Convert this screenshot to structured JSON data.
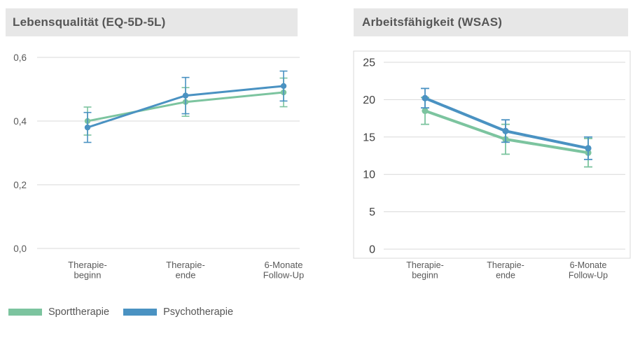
{
  "charts_header": {
    "left_title": "Lebensqualität (EQ-5D-5L)",
    "right_title": "Arbeitsfähigkeit (WSAS)"
  },
  "legend": {
    "position": "bottom-left",
    "items": [
      {
        "label": "Sporttherapie",
        "color": "#7cc49f"
      },
      {
        "label": "Psychotherapie",
        "color": "#4a92c2"
      }
    ]
  },
  "colors": {
    "header_bg": "#e7e7e7",
    "title_text": "#565656",
    "gridline": "#d8d8d8",
    "axis_label_left": "#595959",
    "axis_label_right": "#404040",
    "sporttherapie": "#7cc49f",
    "psychotherapie": "#4a92c2"
  },
  "chart_data": [
    {
      "type": "line",
      "title": "Lebensqualität (EQ-5D-5L)",
      "categories": [
        "Therapie-\nbeginn",
        "Therapie-\nende",
        "6-Monate\nFollow-Up"
      ],
      "y_ticks": [
        {
          "value": 0.0,
          "label": "0,0"
        },
        {
          "value": 0.2,
          "label": "0,2"
        },
        {
          "value": 0.4,
          "label": "0,4"
        },
        {
          "value": 0.6,
          "label": "0,6"
        }
      ],
      "ylim": [
        0.0,
        0.6
      ],
      "grid": true,
      "error_bars": true,
      "series": [
        {
          "name": "Sporttherapie",
          "color": "#7cc49f",
          "values": [
            0.4,
            0.46,
            0.49
          ],
          "errors": [
            0.044,
            0.045,
            0.045
          ]
        },
        {
          "name": "Psychotherapie",
          "color": "#4a92c2",
          "values": [
            0.38,
            0.48,
            0.51
          ],
          "errors": [
            0.047,
            0.057,
            0.047
          ]
        }
      ]
    },
    {
      "type": "line",
      "title": "Arbeitsfähigkeit (WSAS)",
      "categories": [
        "Therapie-\nbeginn",
        "Therapie-\nende",
        "6-Monate\nFollow-Up"
      ],
      "y_ticks": [
        {
          "value": 0,
          "label": "0"
        },
        {
          "value": 5,
          "label": "5"
        },
        {
          "value": 10,
          "label": "10"
        },
        {
          "value": 15,
          "label": "15"
        },
        {
          "value": 20,
          "label": "20"
        },
        {
          "value": 25,
          "label": "25"
        }
      ],
      "ylim": [
        0,
        25
      ],
      "grid": true,
      "error_bars": true,
      "plot_box_border": true,
      "series": [
        {
          "name": "Sporttherapie",
          "color": "#7cc49f",
          "values": [
            18.5,
            14.7,
            12.9
          ],
          "errors": [
            1.8,
            2.0,
            1.9
          ]
        },
        {
          "name": "Psychotherapie",
          "color": "#4a92c2",
          "values": [
            20.2,
            15.8,
            13.5
          ],
          "errors": [
            1.3,
            1.5,
            1.5
          ]
        }
      ]
    }
  ]
}
